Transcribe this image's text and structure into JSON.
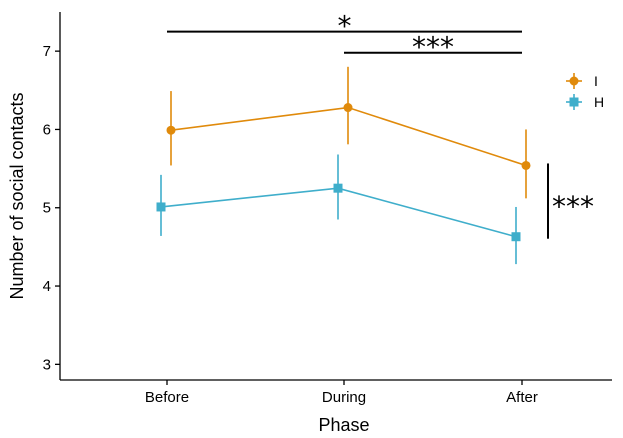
{
  "chart_data": {
    "type": "line",
    "xlabel": "Phase",
    "ylabel": "Number of social contacts",
    "categories": [
      "Before",
      "During",
      "After"
    ],
    "ylim": [
      2.8,
      7.5
    ],
    "yticks": [
      3,
      4,
      5,
      6,
      7
    ],
    "grid": false,
    "legend_position": "top-right",
    "series": [
      {
        "name": "I",
        "color": "#E08A0B",
        "marker": "circle",
        "values": [
          5.99,
          6.28,
          5.54
        ],
        "lower": [
          5.54,
          5.81,
          5.12
        ],
        "upper": [
          6.49,
          6.8,
          6.0
        ]
      },
      {
        "name": "H",
        "color": "#3FAECB",
        "marker": "square",
        "values": [
          5.01,
          5.25,
          4.63
        ],
        "lower": [
          4.64,
          4.85,
          4.28
        ],
        "upper": [
          5.42,
          5.68,
          5.01
        ]
      }
    ],
    "significance": [
      {
        "label": "*",
        "from": "Before",
        "to": "After",
        "level": 7.25
      },
      {
        "label": "***",
        "from": "During",
        "to": "After",
        "level": 6.98
      },
      {
        "label": "***",
        "between_series": [
          "I",
          "H"
        ],
        "at": "After"
      }
    ]
  }
}
